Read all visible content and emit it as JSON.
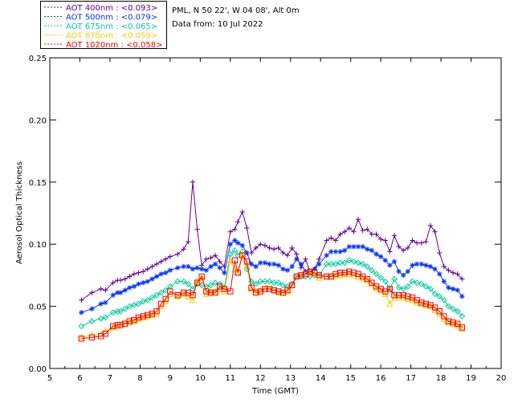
{
  "chart_data": {
    "type": "line",
    "info": {
      "location": "PML, N 50 22', W 04 08', Alt 0m",
      "date": "Data from: 10 Jul 2022"
    },
    "xlabel": "Time (GMT)",
    "ylabel": "Aerosol Optical Thickness",
    "xlim": [
      5,
      20
    ],
    "ylim": [
      0.0,
      0.25
    ],
    "xticks": [
      5,
      6,
      7,
      8,
      9,
      10,
      11,
      12,
      13,
      14,
      15,
      16,
      17,
      18,
      19,
      20
    ],
    "yticks": [
      0.0,
      0.05,
      0.1,
      0.15,
      0.2,
      0.25
    ],
    "ytick_labels": [
      "0.00",
      "0.05",
      "0.10",
      "0.15",
      "0.20",
      "0.25"
    ],
    "x": [
      6.05,
      6.4,
      6.7,
      6.85,
      7.1,
      7.25,
      7.35,
      7.5,
      7.65,
      7.8,
      7.95,
      8.1,
      8.25,
      8.4,
      8.55,
      8.7,
      8.85,
      9.0,
      9.25,
      9.45,
      9.6,
      9.75,
      9.9,
      10.05,
      10.2,
      10.35,
      10.5,
      10.65,
      10.8,
      11.0,
      11.15,
      11.25,
      11.4,
      11.55,
      11.7,
      11.85,
      12.0,
      12.15,
      12.3,
      12.45,
      12.6,
      12.75,
      12.9,
      13.05,
      13.2,
      13.35,
      13.5,
      13.65,
      13.8,
      13.95,
      14.2,
      14.35,
      14.5,
      14.65,
      14.8,
      14.95,
      15.1,
      15.25,
      15.4,
      15.55,
      15.7,
      15.85,
      16.0,
      16.15,
      16.3,
      16.45,
      16.6,
      16.75,
      16.9,
      17.05,
      17.2,
      17.35,
      17.5,
      17.65,
      17.8,
      17.95,
      18.1,
      18.25,
      18.4,
      18.55,
      18.7
    ],
    "series": [
      {
        "name": "AOT  400nm",
        "label": "AOT  400nm : <0.093>",
        "color": "#660099",
        "marker": "plus",
        "values": [
          0.055,
          0.061,
          0.064,
          0.063,
          0.069,
          0.071,
          0.071,
          0.072,
          0.074,
          0.076,
          0.077,
          0.078,
          0.08,
          0.082,
          0.084,
          0.086,
          0.088,
          0.09,
          0.092,
          0.096,
          0.102,
          0.15,
          0.112,
          0.083,
          0.088,
          0.089,
          0.091,
          0.086,
          0.082,
          0.11,
          0.112,
          0.118,
          0.126,
          0.113,
          0.093,
          0.097,
          0.1,
          0.099,
          0.097,
          0.096,
          0.097,
          0.093,
          0.091,
          0.097,
          0.092,
          0.081,
          0.088,
          0.077,
          0.08,
          0.088,
          0.103,
          0.105,
          0.103,
          0.108,
          0.11,
          0.113,
          0.11,
          0.12,
          0.111,
          0.112,
          0.108,
          0.108,
          0.104,
          0.103,
          0.094,
          0.107,
          0.098,
          0.095,
          0.097,
          0.103,
          0.101,
          0.101,
          0.102,
          0.115,
          0.11,
          0.093,
          0.082,
          0.079,
          0.077,
          0.076,
          0.072
        ]
      },
      {
        "name": "AOT  500nm",
        "label": "AOT  500nm : <0.079>",
        "color": "#0033ff",
        "marker": "asterisk",
        "values": [
          0.045,
          0.048,
          0.052,
          0.053,
          0.059,
          0.061,
          0.061,
          0.063,
          0.065,
          0.066,
          0.068,
          0.069,
          0.07,
          0.072,
          0.074,
          0.076,
          0.077,
          0.079,
          0.081,
          0.082,
          0.082,
          0.08,
          0.081,
          0.08,
          0.079,
          0.082,
          0.084,
          0.081,
          0.077,
          0.1,
          0.103,
          0.101,
          0.099,
          0.093,
          0.084,
          0.082,
          0.085,
          0.085,
          0.084,
          0.084,
          0.083,
          0.08,
          0.079,
          0.082,
          0.088,
          0.084,
          0.078,
          0.078,
          0.08,
          0.084,
          0.091,
          0.094,
          0.094,
          0.094,
          0.095,
          0.098,
          0.098,
          0.098,
          0.098,
          0.096,
          0.095,
          0.092,
          0.09,
          0.087,
          0.083,
          0.086,
          0.078,
          0.075,
          0.078,
          0.083,
          0.084,
          0.084,
          0.083,
          0.082,
          0.08,
          0.076,
          0.07,
          0.065,
          0.064,
          0.063,
          0.058
        ]
      },
      {
        "name": "AOT  675nm",
        "label": "AOT  675nm : <0.065>",
        "color": "#00cc99",
        "marker": "diamond",
        "values": [
          0.034,
          0.038,
          0.04,
          0.041,
          0.045,
          0.046,
          0.046,
          0.048,
          0.05,
          0.051,
          0.052,
          0.054,
          0.055,
          0.057,
          0.059,
          0.061,
          0.063,
          0.066,
          0.07,
          0.07,
          0.068,
          0.064,
          0.068,
          0.067,
          0.066,
          0.067,
          0.069,
          0.068,
          0.065,
          0.092,
          0.095,
          0.091,
          0.094,
          0.08,
          0.07,
          0.068,
          0.07,
          0.07,
          0.07,
          0.069,
          0.069,
          0.067,
          0.066,
          0.068,
          0.074,
          0.074,
          0.074,
          0.074,
          0.075,
          0.075,
          0.084,
          0.084,
          0.084,
          0.085,
          0.085,
          0.087,
          0.086,
          0.085,
          0.084,
          0.082,
          0.079,
          0.076,
          0.073,
          0.07,
          0.064,
          0.072,
          0.065,
          0.064,
          0.066,
          0.07,
          0.069,
          0.068,
          0.066,
          0.064,
          0.06,
          0.058,
          0.055,
          0.05,
          0.048,
          0.046,
          0.042
        ]
      },
      {
        "name": "AOT  870nm",
        "label": "AOT  870nm : <0.059>",
        "color": "#ffcc00",
        "marker": "triangle",
        "values": [
          0.025,
          0.027,
          0.028,
          0.03,
          0.033,
          0.034,
          0.035,
          0.036,
          0.037,
          0.038,
          0.04,
          0.041,
          0.042,
          0.043,
          0.044,
          0.05,
          0.054,
          0.06,
          0.058,
          0.06,
          0.058,
          0.055,
          0.07,
          0.073,
          0.06,
          0.062,
          0.062,
          0.064,
          0.062,
          0.087,
          0.08,
          0.078,
          0.092,
          0.083,
          0.064,
          0.062,
          0.063,
          0.064,
          0.064,
          0.063,
          0.061,
          0.061,
          0.062,
          0.067,
          0.074,
          0.075,
          0.076,
          0.077,
          0.076,
          0.073,
          0.074,
          0.074,
          0.075,
          0.075,
          0.076,
          0.076,
          0.075,
          0.074,
          0.073,
          0.071,
          0.068,
          0.065,
          0.063,
          0.06,
          0.052,
          0.057,
          0.057,
          0.057,
          0.056,
          0.055,
          0.053,
          0.052,
          0.051,
          0.05,
          0.047,
          0.044,
          0.04,
          0.037,
          0.036,
          0.035,
          0.032
        ]
      },
      {
        "name": "AOT 1020nm",
        "label": "AOT 1020nm : <0.058>",
        "color": "#ff0000",
        "marker": "square",
        "values": [
          0.024,
          0.025,
          0.026,
          0.028,
          0.034,
          0.035,
          0.035,
          0.036,
          0.038,
          0.039,
          0.041,
          0.042,
          0.043,
          0.044,
          0.046,
          0.052,
          0.056,
          0.062,
          0.059,
          0.061,
          0.061,
          0.059,
          0.069,
          0.074,
          0.062,
          0.061,
          0.061,
          0.066,
          0.064,
          0.062,
          0.087,
          0.077,
          0.091,
          0.086,
          0.065,
          0.061,
          0.062,
          0.064,
          0.064,
          0.063,
          0.062,
          0.061,
          0.063,
          0.067,
          0.074,
          0.075,
          0.076,
          0.078,
          0.077,
          0.075,
          0.074,
          0.074,
          0.076,
          0.077,
          0.077,
          0.078,
          0.077,
          0.076,
          0.074,
          0.072,
          0.069,
          0.066,
          0.064,
          0.062,
          0.064,
          0.059,
          0.059,
          0.059,
          0.058,
          0.057,
          0.055,
          0.053,
          0.052,
          0.051,
          0.049,
          0.046,
          0.042,
          0.038,
          0.037,
          0.036,
          0.033
        ]
      }
    ]
  }
}
